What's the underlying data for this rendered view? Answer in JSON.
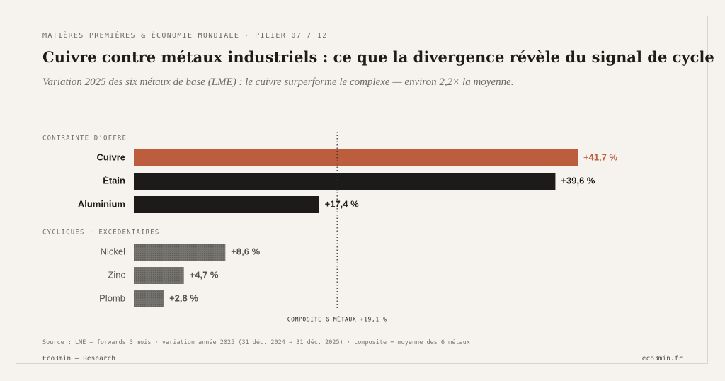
{
  "header": {
    "kicker": "MATIÈRES PREMIÈRES & ÉCONOMIE MONDIALE · PILIER 07 / 12",
    "title": "Cuivre contre métaux industriels : ce que la divergence révèle du signal de cycle",
    "subtitle": "Variation 2025 des six métaux de base (LME) : le cuivre surperforme le complexe — environ 2,2× la moyenne."
  },
  "chart_data": {
    "type": "bar",
    "orientation": "horizontal",
    "groups": [
      {
        "label": "CONTRAINTE D’OFFRE",
        "items": [
          {
            "name": "Cuivre",
            "value": 41.7,
            "label": "+41,7 %",
            "color": "#bc5d3e",
            "highlight": true
          },
          {
            "name": "Étain",
            "value": 39.6,
            "label": "+39,6 %",
            "color": "#1c1b1a"
          },
          {
            "name": "Aluminium",
            "value": 17.4,
            "label": "+17,4 %",
            "color": "#1c1b1a"
          }
        ]
      },
      {
        "label": "CYCLIQUES · EXCÉDENTAIRES",
        "items": [
          {
            "name": "Nickel",
            "value": 8.6,
            "label": "+8,6 %",
            "color": "#6f6d6a"
          },
          {
            "name": "Zinc",
            "value": 4.7,
            "label": "+4,7 %",
            "color": "#6f6d6a"
          },
          {
            "name": "Plomb",
            "value": 2.8,
            "label": "+2,8 %",
            "color": "#6f6d6a"
          }
        ]
      }
    ],
    "reference_line": {
      "value": 19.1,
      "label": "COMPOSITE 6 MÉTAUX +19,1 %"
    },
    "xlim": [
      0,
      41.7
    ],
    "grid": false
  },
  "footer": {
    "source": "Source : LME — forwards 3 mois · variation année 2025 (31 déc. 2024 → 31 déc. 2025) · composite = moyenne des 6 métaux",
    "brand": "Eco3min — Research",
    "site": "eco3min.fr"
  }
}
